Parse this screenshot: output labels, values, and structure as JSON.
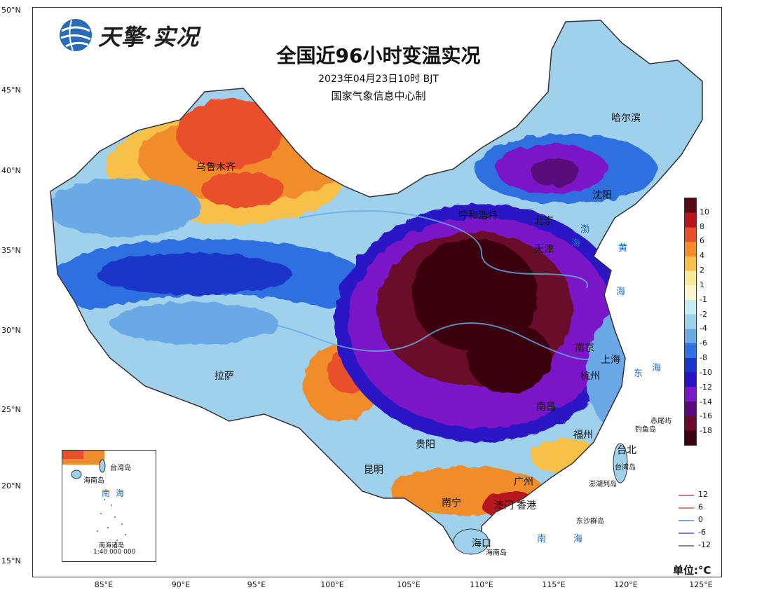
{
  "logo": {
    "text": "天擎·实况"
  },
  "title": "全国近96小时变温实况",
  "subtitle": "2023年04月23日10时  BJT",
  "maker": "国家气象信息中心制",
  "lat_labels": [
    "50°N",
    "45°N",
    "40°N",
    "35°N",
    "30°N",
    "25°N",
    "20°N",
    "15°N"
  ],
  "lon_labels": [
    "85°E",
    "90°E",
    "95°E",
    "100°E",
    "105°E",
    "110°E",
    "115°E",
    "120°E",
    "125°E"
  ],
  "colorbar": {
    "labels": [
      "10",
      "8",
      "6",
      "4",
      "2",
      "1",
      "-1",
      "-2",
      "-4",
      "-6",
      "-8",
      "-10",
      "-12",
      "-14",
      "-16",
      "-18"
    ],
    "colors": [
      "#5a0a14",
      "#b8141e",
      "#e8502a",
      "#f08c2a",
      "#f7c04a",
      "#f8e89a",
      "#fbf6cf",
      "#c7ebf0",
      "#9fd0ec",
      "#6aa9e6",
      "#2f6fe0",
      "#1b35c9",
      "#2a12c4",
      "#7a18c8",
      "#5a0a7a",
      "#6a0a2a",
      "#3a0010"
    ],
    "thresholds": [
      10,
      8,
      6,
      4,
      2,
      1,
      -1,
      -2,
      -4,
      -6,
      -8,
      -10,
      -12,
      -14,
      -16,
      -18
    ]
  },
  "cities": [
    {
      "name": "哈尔滨"
    },
    {
      "name": "乌鲁木齐"
    },
    {
      "name": "呼和浩特"
    },
    {
      "name": "北京"
    },
    {
      "name": "天津"
    },
    {
      "name": "沈阳"
    },
    {
      "name": "拉萨"
    },
    {
      "name": "昆明"
    },
    {
      "name": "贵阳"
    },
    {
      "name": "南宁"
    },
    {
      "name": "广州"
    },
    {
      "name": "香港"
    },
    {
      "name": "澳门"
    },
    {
      "name": "海口"
    },
    {
      "name": "福州"
    },
    {
      "name": "南京"
    },
    {
      "name": "上海"
    },
    {
      "name": "杭州"
    },
    {
      "name": "南昌"
    },
    {
      "name": "台北"
    }
  ],
  "seas": [
    {
      "name": "渤"
    },
    {
      "name": "海"
    },
    {
      "name": "黄"
    },
    {
      "name": "海"
    },
    {
      "name": "东"
    },
    {
      "name": "海"
    },
    {
      "name": "南"
    },
    {
      "name": "海"
    }
  ],
  "small_labels": [
    {
      "name": "赤尾屿"
    },
    {
      "name": "钓鱼岛"
    },
    {
      "name": "台湾岛"
    },
    {
      "name": "澎湖列岛"
    },
    {
      "name": "东沙群岛"
    },
    {
      "name": "海南岛"
    }
  ],
  "inset": {
    "labels": [
      "台湾岛",
      "海南岛",
      "南",
      "海",
      "南海诸岛",
      "1:40 000 000"
    ]
  },
  "contour_legend": {
    "values": [
      "12",
      "6",
      "0",
      "-6",
      "-12"
    ],
    "colors": [
      "#d07890",
      "#e08080",
      "#78a8e0",
      "#9070c0",
      "#8a8a8a"
    ]
  },
  "unit": "单位:°C"
}
